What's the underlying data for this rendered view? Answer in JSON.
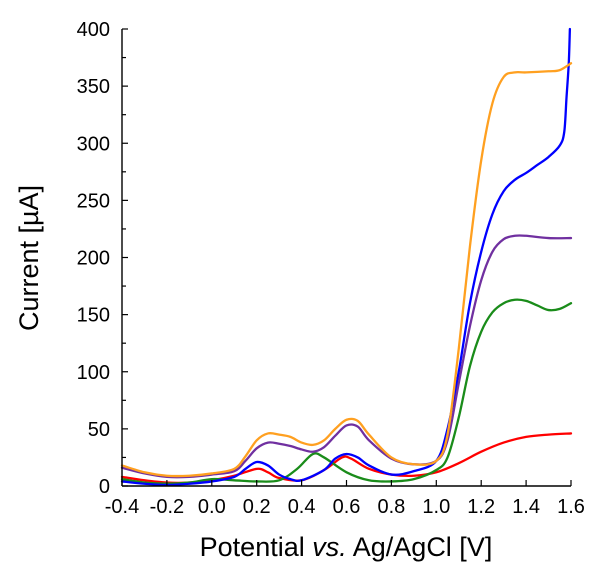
{
  "chart_data": {
    "type": "line",
    "xlabel_parts": [
      "Potential ",
      "vs.",
      " Ag/AgCl [V]"
    ],
    "ylabel": "Current [µA]",
    "xlim": [
      -0.4,
      1.6
    ],
    "ylim": [
      0,
      400
    ],
    "x_ticks": [
      "-0.4",
      "-0.2",
      "0.0",
      "0.2",
      "0.4",
      "0.6",
      "0.8",
      "1.0",
      "1.2",
      "1.4",
      "1.6"
    ],
    "y_ticks": [
      "0",
      "50",
      "100",
      "150",
      "200",
      "250",
      "300",
      "350",
      "400"
    ],
    "grid": false,
    "series": [
      {
        "color": "#ff0000",
        "points": [
          [
            -0.4,
            8
          ],
          [
            -0.3,
            5
          ],
          [
            -0.2,
            3
          ],
          [
            -0.1,
            3
          ],
          [
            0.0,
            5
          ],
          [
            0.1,
            9
          ],
          [
            0.2,
            15
          ],
          [
            0.25,
            12
          ],
          [
            0.3,
            7
          ],
          [
            0.4,
            5
          ],
          [
            0.5,
            14
          ],
          [
            0.58,
            25
          ],
          [
            0.62,
            24
          ],
          [
            0.7,
            15
          ],
          [
            0.8,
            10
          ],
          [
            0.9,
            9
          ],
          [
            1.0,
            12
          ],
          [
            1.1,
            20
          ],
          [
            1.2,
            30
          ],
          [
            1.3,
            38
          ],
          [
            1.4,
            43
          ],
          [
            1.5,
            45
          ],
          [
            1.6,
            46
          ]
        ]
      },
      {
        "color": "#1a8c1a",
        "points": [
          [
            -0.4,
            6
          ],
          [
            -0.3,
            3
          ],
          [
            -0.2,
            2
          ],
          [
            -0.1,
            3
          ],
          [
            0.0,
            6
          ],
          [
            0.1,
            5
          ],
          [
            0.2,
            4
          ],
          [
            0.3,
            5
          ],
          [
            0.38,
            15
          ],
          [
            0.45,
            28
          ],
          [
            0.5,
            25
          ],
          [
            0.6,
            12
          ],
          [
            0.7,
            5
          ],
          [
            0.8,
            4
          ],
          [
            0.9,
            6
          ],
          [
            1.0,
            14
          ],
          [
            1.05,
            25
          ],
          [
            1.1,
            60
          ],
          [
            1.15,
            105
          ],
          [
            1.2,
            135
          ],
          [
            1.25,
            152
          ],
          [
            1.3,
            160
          ],
          [
            1.35,
            163
          ],
          [
            1.4,
            162
          ],
          [
            1.45,
            158
          ],
          [
            1.5,
            154
          ],
          [
            1.55,
            155
          ],
          [
            1.6,
            160
          ]
        ]
      },
      {
        "color": "#0000ff",
        "points": [
          [
            -0.4,
            4
          ],
          [
            -0.3,
            2
          ],
          [
            -0.2,
            1
          ],
          [
            -0.1,
            2
          ],
          [
            0.0,
            4
          ],
          [
            0.1,
            8
          ],
          [
            0.15,
            15
          ],
          [
            0.2,
            21
          ],
          [
            0.25,
            18
          ],
          [
            0.3,
            10
          ],
          [
            0.35,
            6
          ],
          [
            0.4,
            5
          ],
          [
            0.5,
            14
          ],
          [
            0.55,
            24
          ],
          [
            0.6,
            28
          ],
          [
            0.65,
            25
          ],
          [
            0.7,
            18
          ],
          [
            0.8,
            10
          ],
          [
            0.9,
            13
          ],
          [
            1.0,
            22
          ],
          [
            1.05,
            50
          ],
          [
            1.1,
            100
          ],
          [
            1.15,
            160
          ],
          [
            1.2,
            205
          ],
          [
            1.25,
            238
          ],
          [
            1.3,
            258
          ],
          [
            1.35,
            268
          ],
          [
            1.4,
            274
          ],
          [
            1.45,
            281
          ],
          [
            1.5,
            288
          ],
          [
            1.55,
            298
          ],
          [
            1.57,
            310
          ],
          [
            1.58,
            340
          ],
          [
            1.59,
            370
          ],
          [
            1.595,
            400
          ]
        ]
      },
      {
        "color": "#7030a0",
        "points": [
          [
            -0.4,
            16
          ],
          [
            -0.3,
            11
          ],
          [
            -0.2,
            8
          ],
          [
            -0.1,
            8
          ],
          [
            0.0,
            10
          ],
          [
            0.1,
            13
          ],
          [
            0.15,
            22
          ],
          [
            0.2,
            33
          ],
          [
            0.25,
            38
          ],
          [
            0.3,
            37
          ],
          [
            0.35,
            35
          ],
          [
            0.4,
            32
          ],
          [
            0.45,
            30
          ],
          [
            0.5,
            34
          ],
          [
            0.55,
            44
          ],
          [
            0.6,
            53
          ],
          [
            0.65,
            52
          ],
          [
            0.7,
            40
          ],
          [
            0.8,
            24
          ],
          [
            0.9,
            19
          ],
          [
            1.0,
            22
          ],
          [
            1.05,
            40
          ],
          [
            1.1,
            90
          ],
          [
            1.15,
            140
          ],
          [
            1.2,
            180
          ],
          [
            1.25,
            205
          ],
          [
            1.3,
            216
          ],
          [
            1.35,
            219
          ],
          [
            1.4,
            219
          ],
          [
            1.5,
            217
          ],
          [
            1.6,
            217
          ]
        ]
      },
      {
        "color": "#ffa020",
        "points": [
          [
            -0.4,
            18
          ],
          [
            -0.3,
            12
          ],
          [
            -0.2,
            9
          ],
          [
            -0.1,
            9
          ],
          [
            0.0,
            11
          ],
          [
            0.1,
            15
          ],
          [
            0.15,
            26
          ],
          [
            0.2,
            40
          ],
          [
            0.25,
            46
          ],
          [
            0.3,
            45
          ],
          [
            0.35,
            43
          ],
          [
            0.4,
            38
          ],
          [
            0.45,
            36
          ],
          [
            0.5,
            40
          ],
          [
            0.55,
            50
          ],
          [
            0.6,
            58
          ],
          [
            0.65,
            57
          ],
          [
            0.7,
            45
          ],
          [
            0.8,
            25
          ],
          [
            0.9,
            19
          ],
          [
            1.0,
            22
          ],
          [
            1.05,
            45
          ],
          [
            1.1,
            120
          ],
          [
            1.15,
            210
          ],
          [
            1.2,
            285
          ],
          [
            1.25,
            335
          ],
          [
            1.3,
            358
          ],
          [
            1.35,
            362
          ],
          [
            1.4,
            362
          ],
          [
            1.5,
            363
          ],
          [
            1.55,
            364
          ],
          [
            1.6,
            370
          ]
        ]
      }
    ]
  }
}
